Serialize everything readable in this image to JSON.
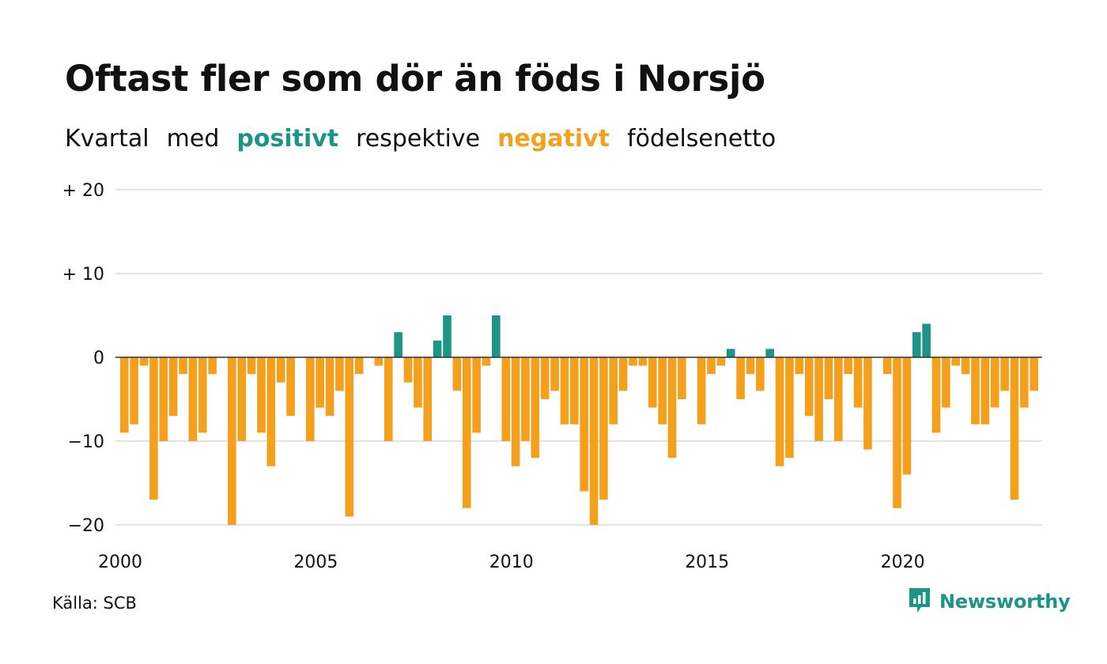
{
  "title": "Oftast fler som dör än föds i Norsjö",
  "subtitle": {
    "part1": "Kvartal",
    "part2": "med",
    "positive_word": "positivt",
    "part3": "respektive",
    "negative_word": "negativt",
    "part4": "födelsenetto"
  },
  "source": "Källa: SCB",
  "brand": "Newsworthy",
  "colors": {
    "positive": "#1c9486",
    "negative": "#f4a01c",
    "grid": "#e2e2e2",
    "zero_line": "#333333",
    "brand": "#1c9486"
  },
  "chart_data": {
    "type": "bar",
    "xlabel": "",
    "ylabel": "",
    "ylim": [
      -20,
      20
    ],
    "y_ticks": [
      {
        "value": 20,
        "label": "+ 20"
      },
      {
        "value": 10,
        "label": "+ 10"
      },
      {
        "value": 0,
        "label": "0"
      },
      {
        "value": -10,
        "label": "−10"
      },
      {
        "value": -20,
        "label": "−20"
      }
    ],
    "x_ticks": [
      "2000",
      "2005",
      "2010",
      "2015",
      "2020"
    ],
    "grid": true,
    "first_period": "2000 Q1",
    "last_period": "2023 Q2",
    "values": [
      -9,
      -8,
      -1,
      -17,
      -10,
      -7,
      -2,
      -10,
      -9,
      -2,
      0,
      -20,
      -10,
      -2,
      -9,
      -13,
      -3,
      -7,
      0,
      -10,
      -6,
      -7,
      -4,
      -19,
      -2,
      0,
      -1,
      -10,
      3,
      -3,
      -6,
      -10,
      2,
      5,
      -4,
      -18,
      -9,
      -1,
      5,
      -10,
      -13,
      -10,
      -12,
      -5,
      -4,
      -8,
      -8,
      -16,
      -20,
      -17,
      -8,
      -4,
      -1,
      -1,
      -6,
      -8,
      -12,
      -5,
      0,
      -8,
      -2,
      -1,
      1,
      -5,
      -2,
      -4,
      1,
      -13,
      -12,
      -2,
      -7,
      -10,
      -5,
      -10,
      -2,
      -6,
      -11,
      0,
      -2,
      -18,
      -14,
      3,
      4,
      -9,
      -6,
      -1,
      -2,
      -8,
      -8,
      -6,
      -4,
      -17,
      -6,
      -4
    ]
  }
}
